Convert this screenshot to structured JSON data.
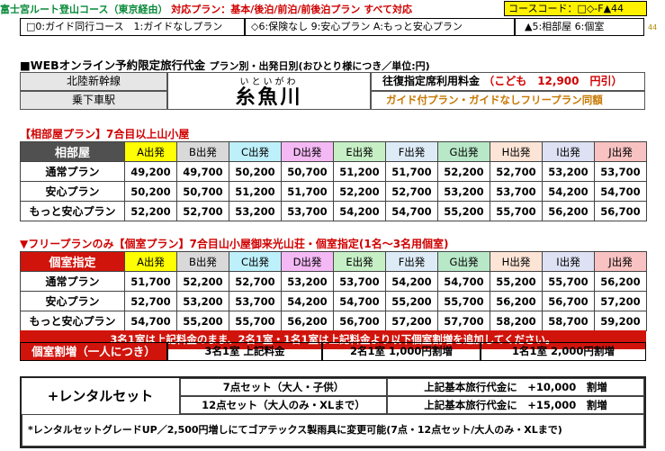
{
  "header": {
    "course_title": "富士宮ルート登山コース（東京経由）",
    "plans_label": "対応プラン：基本/後泊/前泊/前後泊プラン",
    "plans_all": "すべて対応",
    "course_code": "コースコード：□◇-F▲44",
    "small_code": "44"
  },
  "plan_codes": {
    "guide": "□0:ガイド同行コース　1:ガイドなしプラン",
    "insurance": "◇6:保険なし 9:安心プラン A:もっと安心プラン",
    "room": "▲5:相部屋 6:個室"
  },
  "fare_section": {
    "title": "■WEBオンライン予約限定旅行代金",
    "subtitle": "プラン別・出発日別(おひとり様につき／単位:円)",
    "line_name": "北陸新幹線",
    "station_label": "乗下車駅",
    "city_kana": "いといがわ",
    "city_name": "糸魚川",
    "reserved_fare_label": "往復指定席利用料金",
    "child_fare": "（こども　12,900　円引）",
    "guide_note": "ガイド付プラン・ガイドなしフリープラン同額"
  },
  "shared_room": {
    "title": "【相部屋プラン】7合目以上山小屋",
    "corner": "相部屋",
    "columns": [
      "A出発",
      "B出発",
      "C出発",
      "D出発",
      "E出発",
      "F出発",
      "G出発",
      "H出発",
      "I出発",
      "J出発"
    ],
    "column_colors": [
      "#ffff00",
      "#d9d9d9",
      "#bdf0fb",
      "#f4b9f4",
      "#c6efc6",
      "#ddebf7",
      "#b8e8c8",
      "#fce4d6",
      "#dde1f3",
      "#f9c2c2"
    ],
    "rows": [
      {
        "label": "通常プラン",
        "values": [
          "49,200",
          "49,700",
          "50,200",
          "50,700",
          "51,200",
          "51,700",
          "52,200",
          "52,700",
          "53,200",
          "53,700"
        ]
      },
      {
        "label": "安心プラン",
        "values": [
          "50,200",
          "50,700",
          "51,200",
          "51,700",
          "52,200",
          "52,700",
          "53,200",
          "53,700",
          "54,200",
          "54,700"
        ]
      },
      {
        "label": "もっと安心プラン",
        "values": [
          "52,200",
          "52,700",
          "53,200",
          "53,700",
          "54,200",
          "54,700",
          "55,200",
          "55,700",
          "56,200",
          "56,700"
        ]
      }
    ]
  },
  "private_room": {
    "title": "▼フリープランのみ【個室プラン】7合目山小屋御来光山荘・個室指定(1名～3名用個室)",
    "corner": "個室指定",
    "rows": [
      {
        "label": "通常プラン",
        "values": [
          "51,700",
          "52,200",
          "52,700",
          "53,200",
          "53,700",
          "54,200",
          "54,700",
          "55,200",
          "55,700",
          "56,200"
        ]
      },
      {
        "label": "安心プラン",
        "values": [
          "52,700",
          "53,200",
          "53,700",
          "54,200",
          "54,700",
          "55,200",
          "55,700",
          "56,200",
          "56,700",
          "57,200"
        ]
      },
      {
        "label": "もっと安心プラン",
        "values": [
          "54,700",
          "55,200",
          "55,700",
          "56,200",
          "56,700",
          "57,200",
          "57,700",
          "58,200",
          "58,700",
          "59,200"
        ]
      }
    ],
    "note": "3名1室は上記料金のまま、2名1室・1名1室は上記料金より以下個室割増を追加してください。"
  },
  "single_surcharge": {
    "label": "個室割増（一人につき）",
    "three": "3名1室 上記料金",
    "two": "2名1室 1,000円割増",
    "one": "1名1室 2,000円割増"
  },
  "rental": {
    "title": "+レンタルセット",
    "set7": "7点セット（大人・子供）",
    "set7_price": "上記基本旅行代金に　+10,000　割増",
    "set12": "12点セット（大人のみ・XLまで）",
    "set12_price": "上記基本旅行代金に　+15,000　割増",
    "footnote": "*レンタルセットグレードUP／2,500円増しにてゴアテックス製雨具に変更可能(7点・12点セット/大人のみ・XLまで)"
  }
}
